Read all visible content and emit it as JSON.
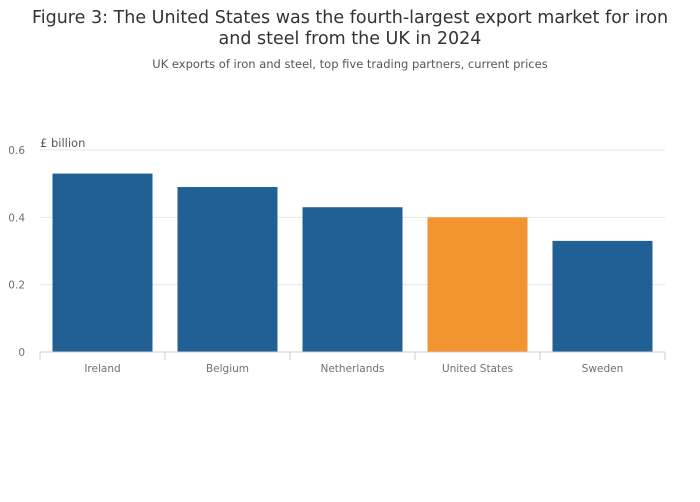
{
  "title": "Figure 3: The United States was the fourth-largest export market for iron and steel from the UK in 2024",
  "subtitle": "UK exports of iron and steel, top five trading partners, current prices",
  "colors": {
    "default_bar": "#206095",
    "highlight_bar": "#F39431",
    "grid": "#E6E6E6",
    "axis": "#CCCCCC",
    "tick_text": "#707070"
  },
  "chart_data": {
    "type": "bar",
    "title": "Figure 3: The United States was the fourth-largest export market for iron and steel from the UK in 2024",
    "subtitle": "UK exports of iron and steel, top five trading partners, current prices",
    "ylabel": "£ billion",
    "xlabel": "",
    "categories": [
      "Ireland",
      "Belgium",
      "Netherlands",
      "United States",
      "Sweden"
    ],
    "values": [
      0.53,
      0.49,
      0.43,
      0.4,
      0.33
    ],
    "highlight": "United States",
    "ylim": [
      0,
      0.6
    ],
    "yticks": [
      0,
      0.2,
      0.4,
      0.6
    ],
    "ytick_labels": [
      "0",
      "0.2",
      "0.4",
      "0.6"
    ],
    "grid": true
  }
}
